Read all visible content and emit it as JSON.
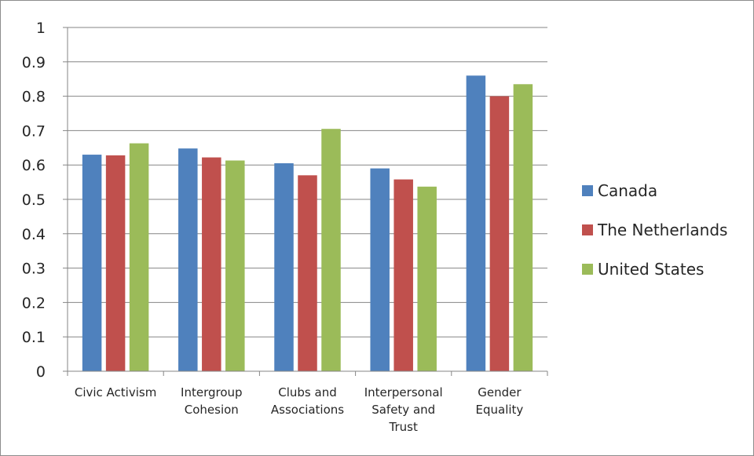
{
  "chart_data": {
    "type": "bar",
    "title": "",
    "xlabel": "",
    "ylabel": "",
    "ylim": [
      0,
      1
    ],
    "yticks": [
      "0",
      "0.1",
      "0.2",
      "0.3",
      "0.4",
      "0.5",
      "0.6",
      "0.7",
      "0.8",
      "0.9",
      "1"
    ],
    "grid": true,
    "legend_position": "right",
    "categories": [
      "Civic Activism",
      "Intergroup Cohesion",
      "Clubs and Associations",
      "Interpersonal Safety and Trust",
      "Gender Equality"
    ],
    "category_label_lines": [
      [
        "Civic Activism"
      ],
      [
        "Intergroup",
        "Cohesion"
      ],
      [
        "Clubs and",
        "Associations"
      ],
      [
        "Interpersonal",
        "Safety and",
        "Trust"
      ],
      [
        "Gender",
        "Equality"
      ]
    ],
    "series": [
      {
        "name": "Canada",
        "color": "#4f81bd",
        "values": [
          0.63,
          0.648,
          0.605,
          0.59,
          0.86
        ]
      },
      {
        "name": "The Netherlands",
        "color": "#c0504d",
        "values": [
          0.628,
          0.622,
          0.57,
          0.558,
          0.8
        ]
      },
      {
        "name": "United States",
        "color": "#9bbb59",
        "values": [
          0.663,
          0.613,
          0.705,
          0.537,
          0.835
        ]
      }
    ]
  }
}
